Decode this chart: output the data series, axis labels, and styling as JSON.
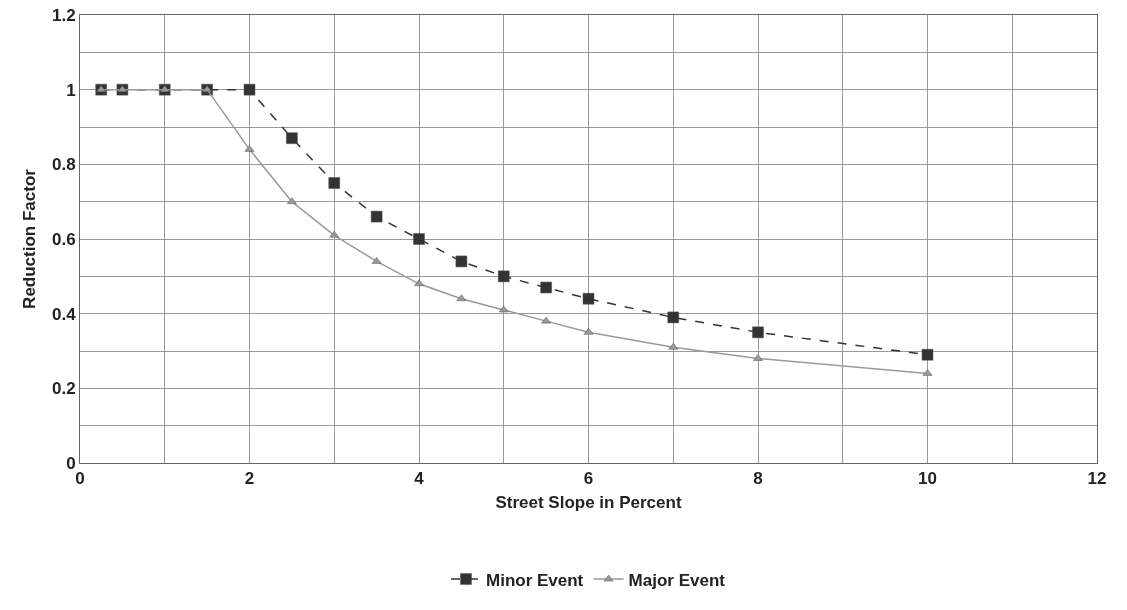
{
  "chart_data": {
    "type": "line",
    "xlabel": "Street Slope in Percent",
    "ylabel": "Reduction Factor",
    "x": [
      0.25,
      0.5,
      1,
      1.5,
      2,
      2.5,
      3,
      3.5,
      4,
      4.5,
      5,
      5.5,
      6,
      7,
      8,
      10
    ],
    "series": [
      {
        "name": "Minor Event",
        "color": "#333333",
        "marker": "square",
        "line_style": "dashed",
        "values": [
          1,
          1,
          1,
          1,
          1,
          0.87,
          0.75,
          0.66,
          0.6,
          0.54,
          0.5,
          0.47,
          0.44,
          0.39,
          0.35,
          0.29
        ]
      },
      {
        "name": "Major Event",
        "color": "#999999",
        "marker": "triangle",
        "line_style": "solid",
        "values": [
          1,
          1,
          1,
          1,
          0.84,
          0.7,
          0.61,
          0.54,
          0.48,
          0.44,
          0.41,
          0.38,
          0.35,
          0.31,
          0.28,
          0.24
        ]
      }
    ],
    "xlim": [
      0,
      12
    ],
    "xticks": [
      0,
      {
        "value": 1,
        "label": null
      },
      2,
      {
        "value": 3,
        "label": null
      },
      4,
      {
        "value": 5,
        "label": null
      },
      6,
      {
        "value": 7,
        "label": null
      },
      8,
      {
        "value": 9,
        "label": null
      },
      10,
      {
        "value": 11,
        "label": null
      },
      12
    ],
    "ylim": [
      0,
      1.2
    ],
    "yticks": [
      0,
      {
        "value": 0.1,
        "label": null
      },
      0.2,
      {
        "value": 0.3,
        "label": null
      },
      0.4,
      {
        "value": 0.5,
        "label": null
      },
      0.6,
      {
        "value": 0.7,
        "label": null
      },
      0.8,
      {
        "value": 0.9,
        "label": null
      },
      1,
      {
        "value": 1.1,
        "label": null
      },
      1.2
    ],
    "grid": true,
    "legend": "bottom"
  }
}
